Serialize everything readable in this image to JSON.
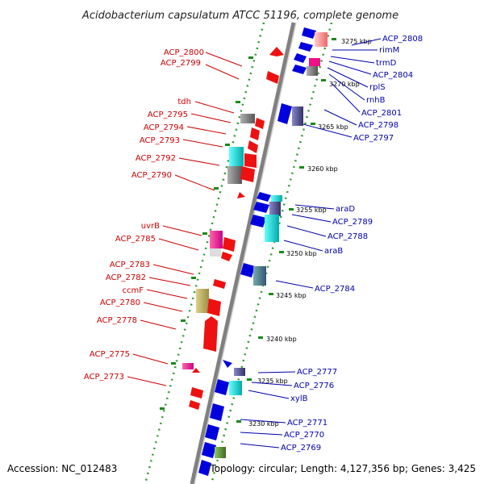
{
  "title": "Acidobacterium capsulatum ATCC 51196, complete genome",
  "footer": {
    "accession": "Accession: NC_012483",
    "topology": "Topology: circular; Length: 4,127,356 bp; Genes: 3,425"
  },
  "colors": {
    "forward_strand": "#ff0000",
    "reverse_strand": "#0000cc",
    "backbone": "#808080",
    "tick_dots": "#339933",
    "label_forward": "#cc0000",
    "label_reverse": "#0000aa"
  },
  "scale_ticks": [
    {
      "label": "3275 kbp"
    },
    {
      "label": "3270 kbp"
    },
    {
      "label": "3265 kbp"
    },
    {
      "label": "3260 kbp"
    },
    {
      "label": "3255 kbp"
    },
    {
      "label": "3250 kbp"
    },
    {
      "label": "3245 kbp"
    },
    {
      "label": "3240 kbp"
    },
    {
      "label": "3235 kbp"
    },
    {
      "label": "3230 kbp"
    }
  ],
  "left_labels": [
    {
      "text": "ACP_2800"
    },
    {
      "text": "ACP_2799"
    },
    {
      "text": "tdh"
    },
    {
      "text": "ACP_2795"
    },
    {
      "text": "ACP_2794"
    },
    {
      "text": "ACP_2793"
    },
    {
      "text": "ACP_2792"
    },
    {
      "text": "ACP_2790"
    },
    {
      "text": "uvrB"
    },
    {
      "text": "ACP_2785"
    },
    {
      "text": "ACP_2783"
    },
    {
      "text": "ACP_2782"
    },
    {
      "text": "ccmF"
    },
    {
      "text": "ACP_2780"
    },
    {
      "text": "ACP_2778"
    },
    {
      "text": "ACP_2775"
    },
    {
      "text": "ACP_2773"
    }
  ],
  "right_labels": [
    {
      "text": "ACP_2808"
    },
    {
      "text": "rimM"
    },
    {
      "text": "trmD"
    },
    {
      "text": "ACP_2804"
    },
    {
      "text": "rplS"
    },
    {
      "text": "rnhB"
    },
    {
      "text": "ACP_2801"
    },
    {
      "text": "ACP_2798"
    },
    {
      "text": "ACP_2797"
    },
    {
      "text": "araD"
    },
    {
      "text": "ACP_2789"
    },
    {
      "text": "ACP_2788"
    },
    {
      "text": "araB"
    },
    {
      "text": "ACP_2784"
    },
    {
      "text": "ACP_2777"
    },
    {
      "text": "ACP_2776"
    },
    {
      "text": "xylB"
    },
    {
      "text": "ACP_2771"
    },
    {
      "text": "ACP_2770"
    },
    {
      "text": "ACP_2769"
    }
  ]
}
